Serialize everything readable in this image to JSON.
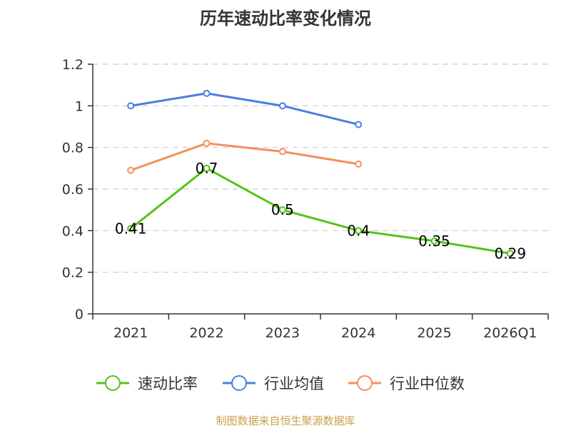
{
  "title": "历年速动比率变化情况",
  "source": "制图数据来自恒生聚源数据库",
  "colors": {
    "quick_ratio": "#52c41a",
    "industry_avg": "#4a7fe0",
    "industry_median": "#f5905a",
    "axis": "#333333",
    "grid": "#cccccc"
  },
  "chart_data": {
    "type": "line",
    "categories": [
      "2021",
      "2022",
      "2023",
      "2024",
      "2025",
      "2026Q1"
    ],
    "ylim": [
      0,
      1.2
    ],
    "yticks": [
      "0",
      "0.2",
      "0.4",
      "0.6",
      "0.8",
      "1",
      "1.2"
    ],
    "grid": true,
    "legend_position": "bottom",
    "series": [
      {
        "name": "速动比率",
        "values": [
          0.41,
          0.7,
          0.5,
          0.4,
          0.35,
          0.29
        ],
        "labels": [
          "0.41",
          "0.7",
          "0.5",
          "0.4",
          "0.35",
          "0.29"
        ],
        "color_key": "quick_ratio"
      },
      {
        "name": "行业均值",
        "values": [
          1.0,
          1.06,
          1.0,
          0.91,
          null,
          null
        ],
        "color_key": "industry_avg"
      },
      {
        "name": "行业中位数",
        "values": [
          0.69,
          0.82,
          0.78,
          0.72,
          null,
          null
        ],
        "color_key": "industry_median"
      }
    ]
  }
}
